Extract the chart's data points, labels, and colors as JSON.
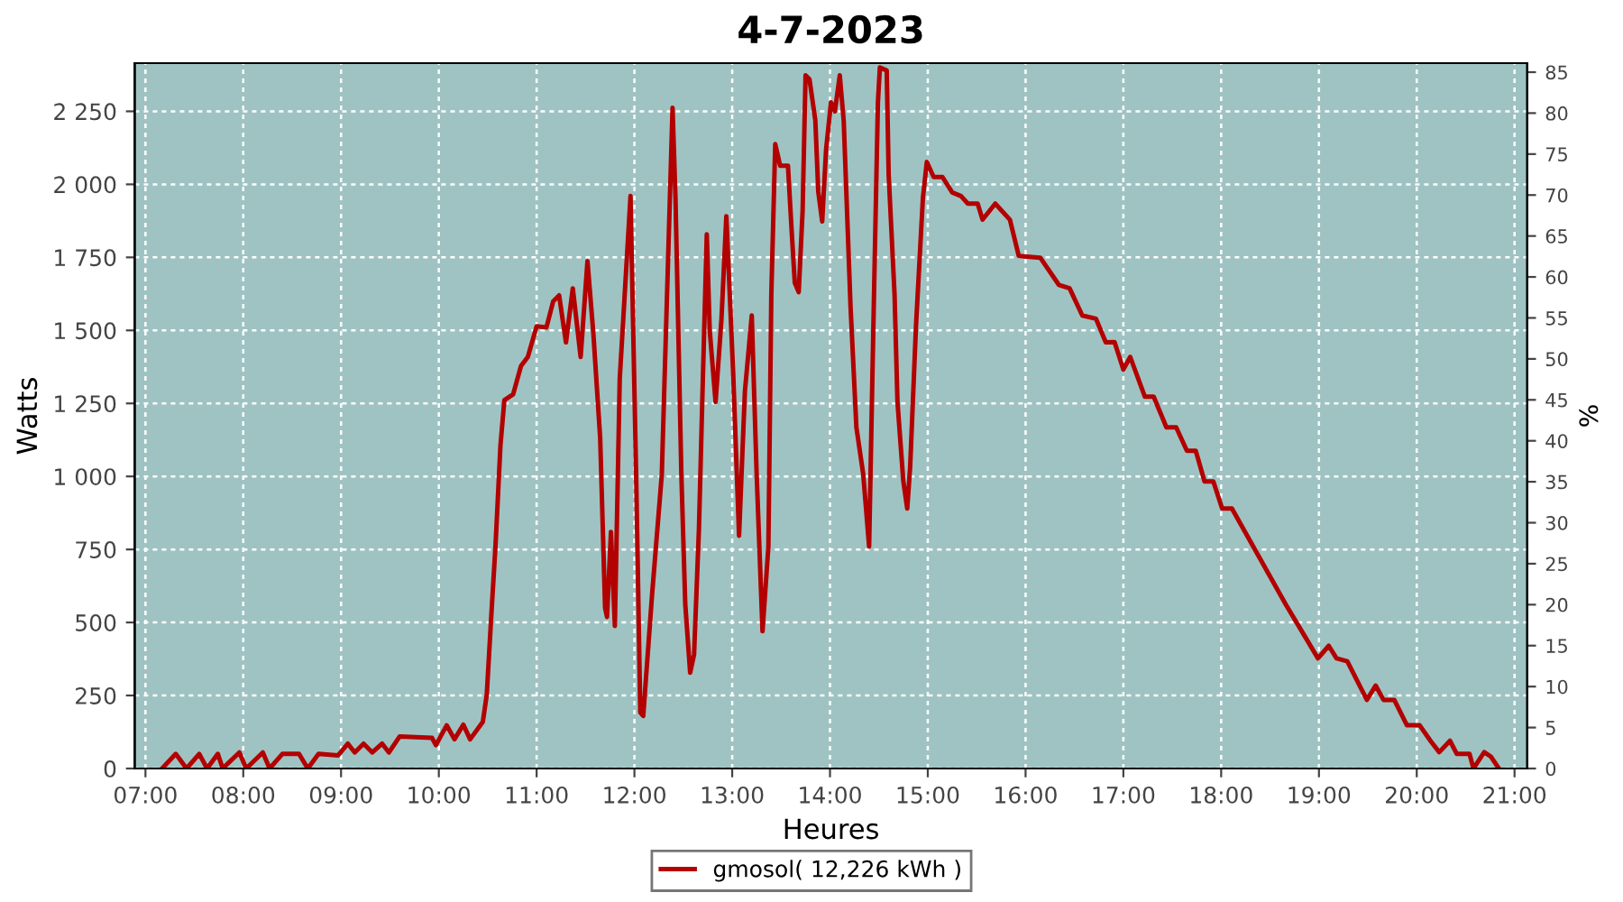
{
  "chart_data": {
    "type": "line",
    "title": "4-7-2023",
    "xlabel": "Heures",
    "ylabel": "Watts",
    "y2label": "%",
    "xlim": [
      6.89,
      21.13
    ],
    "xticks": [
      {
        "value": 7,
        "label": "07:00"
      },
      {
        "value": 8,
        "label": "08:00"
      },
      {
        "value": 9,
        "label": "09:00"
      },
      {
        "value": 10,
        "label": "10:00"
      },
      {
        "value": 11,
        "label": "11:00"
      },
      {
        "value": 12,
        "label": "12:00"
      },
      {
        "value": 13,
        "label": "13:00"
      },
      {
        "value": 14,
        "label": "14:00"
      },
      {
        "value": 15,
        "label": "15:00"
      },
      {
        "value": 16,
        "label": "16:00"
      },
      {
        "value": 17,
        "label": "17:00"
      },
      {
        "value": 18,
        "label": "18:00"
      },
      {
        "value": 19,
        "label": "19:00"
      },
      {
        "value": 20,
        "label": "20:00"
      },
      {
        "value": 21,
        "label": "21:00"
      }
    ],
    "ylim": [
      0,
      2415
    ],
    "yticks": [
      0,
      250,
      500,
      750,
      {
        "value": 1000,
        "label": "1 000"
      },
      {
        "value": 1250,
        "label": "1 250"
      },
      {
        "value": 1500,
        "label": "1 500"
      },
      {
        "value": 1750,
        "label": "1 750"
      },
      {
        "value": 2000,
        "label": "2 000"
      },
      {
        "value": 2250,
        "label": "2 250"
      }
    ],
    "y2lim": [
      0,
      86.1
    ],
    "y2ticks": [
      0,
      5,
      10,
      15,
      20,
      25,
      30,
      35,
      40,
      45,
      50,
      55,
      60,
      65,
      70,
      75,
      80,
      85
    ],
    "grid": true,
    "legend": "bottom",
    "marker": "none",
    "line_style": "solid",
    "series": [
      {
        "name": "gmosol( 12,226 kWh )",
        "color": "#b30000",
        "x": [
          7.17,
          7.31,
          7.42,
          7.55,
          7.63,
          7.74,
          7.79,
          7.96,
          8.03,
          8.2,
          8.27,
          8.4,
          8.57,
          8.66,
          8.77,
          8.97,
          9.07,
          9.14,
          9.23,
          9.32,
          9.42,
          9.49,
          9.6,
          9.93,
          9.97,
          10.08,
          10.16,
          10.25,
          10.32,
          10.45,
          10.49,
          10.54,
          10.58,
          10.63,
          10.67,
          10.76,
          10.84,
          10.91,
          11.0,
          11.1,
          11.17,
          11.23,
          11.3,
          11.37,
          11.45,
          11.52,
          11.58,
          11.65,
          11.7,
          11.72,
          11.76,
          11.8,
          11.85,
          11.96,
          12.02,
          12.06,
          12.09,
          12.18,
          12.28,
          12.33,
          12.39,
          12.42,
          12.48,
          12.52,
          12.57,
          12.61,
          12.66,
          12.7,
          12.74,
          12.77,
          12.83,
          12.89,
          12.94,
          13.01,
          13.07,
          13.13,
          13.2,
          13.25,
          13.31,
          13.37,
          13.4,
          13.44,
          13.49,
          13.57,
          13.61,
          13.64,
          13.68,
          13.72,
          13.75,
          13.79,
          13.85,
          13.88,
          13.92,
          13.96,
          14.01,
          14.05,
          14.1,
          14.14,
          14.21,
          14.27,
          14.34,
          14.4,
          14.42,
          14.45,
          14.49,
          14.51,
          14.58,
          14.6,
          14.66,
          14.69,
          14.75,
          14.79,
          14.82,
          14.88,
          14.95,
          14.99,
          15.06,
          15.15,
          15.25,
          15.34,
          15.41,
          15.51,
          15.56,
          15.69,
          15.84,
          15.93,
          16.15,
          16.34,
          16.45,
          16.58,
          16.72,
          16.82,
          16.91,
          17.0,
          17.07,
          17.22,
          17.31,
          17.44,
          17.54,
          17.65,
          17.74,
          17.83,
          17.92,
          18.01,
          18.11,
          18.37,
          18.66,
          18.88,
          18.99,
          19.1,
          19.18,
          19.29,
          19.49,
          19.58,
          19.66,
          19.77,
          19.9,
          20.03,
          20.14,
          20.23,
          20.34,
          20.41,
          20.54,
          20.58,
          20.69,
          20.76,
          20.84
        ],
        "values": [
          0,
          50,
          0,
          50,
          0,
          50,
          0,
          55,
          0,
          55,
          0,
          50,
          50,
          0,
          50,
          45,
          85,
          55,
          85,
          55,
          85,
          55,
          110,
          105,
          80,
          148,
          100,
          150,
          100,
          160,
          253,
          544,
          766,
          1106,
          1261,
          1281,
          1378,
          1409,
          1514,
          1510,
          1600,
          1620,
          1459,
          1644,
          1409,
          1737,
          1490,
          1131,
          550,
          519,
          810,
          488,
          1335,
          1960,
          964,
          192,
          180,
          593,
          1007,
          1582,
          2262,
          1953,
          1007,
          562,
          328,
          390,
          822,
          1335,
          1829,
          1500,
          1255,
          1538,
          1891,
          1353,
          797,
          1292,
          1551,
          1007,
          470,
          760,
          1625,
          2138,
          2064,
          2064,
          1829,
          1663,
          1631,
          1910,
          2373,
          2360,
          2219,
          1975,
          1873,
          2119,
          2281,
          2250,
          2373,
          2219,
          1582,
          1168,
          1007,
          760,
          1106,
          1624,
          2281,
          2400,
          2390,
          2033,
          1624,
          1255,
          983,
          890,
          1035,
          1520,
          1953,
          2077,
          2025,
          2025,
          1972,
          1960,
          1934,
          1934,
          1879,
          1934,
          1879,
          1755,
          1749,
          1656,
          1644,
          1551,
          1540,
          1459,
          1460,
          1366,
          1409,
          1273,
          1273,
          1168,
          1168,
          1088,
          1088,
          983,
          983,
          890,
          890,
          735,
          562,
          439,
          377,
          420,
          377,
          367,
          235,
          284,
          235,
          235,
          148,
          148,
          95,
          56,
          95,
          50,
          50,
          0,
          56,
          40,
          0
        ]
      }
    ]
  }
}
